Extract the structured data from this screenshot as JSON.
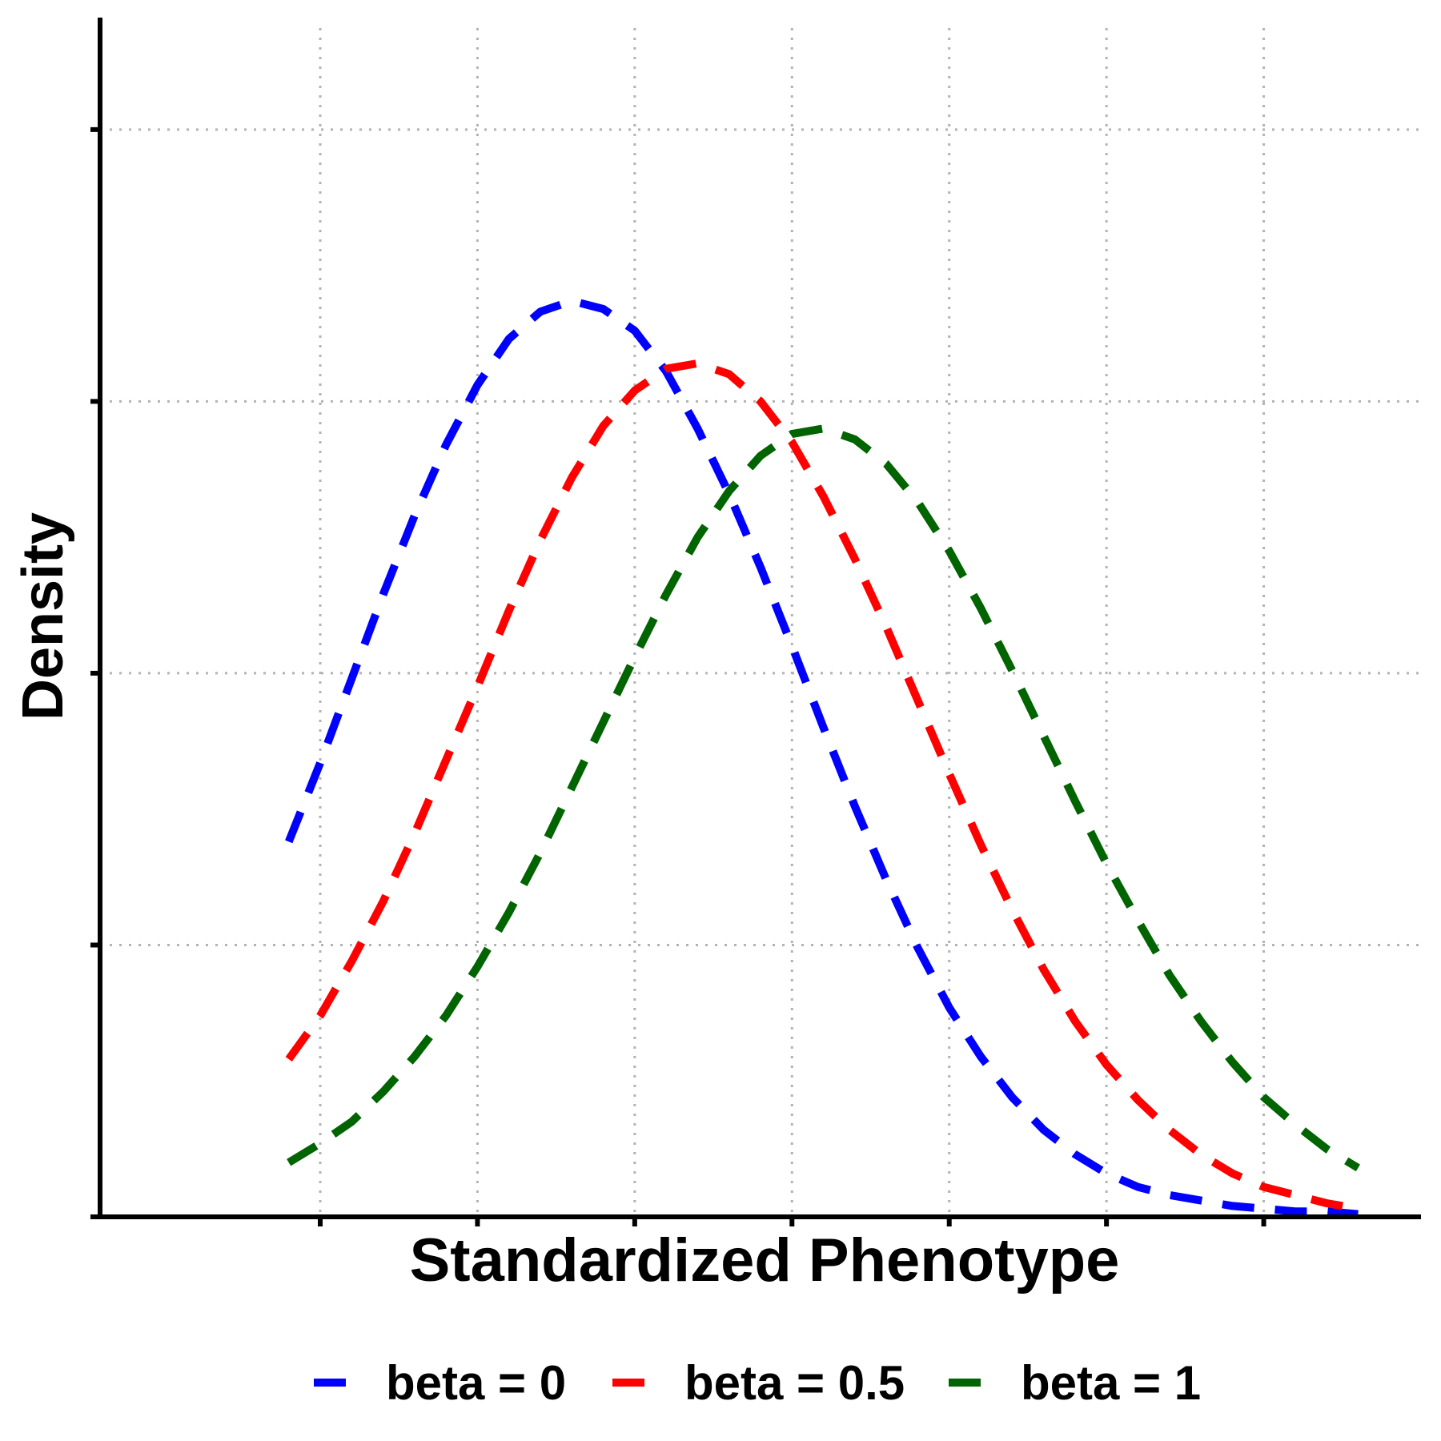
{
  "chart_data": {
    "type": "line",
    "title": "",
    "xlabel": "Standardized Phenotype",
    "ylabel": "Density",
    "x_tick_labels": [],
    "y_tick_labels": [],
    "xlim": [
      -4.4,
      4.0
    ],
    "ylim": [
      0,
      0.43
    ],
    "x_ticks": [
      -3,
      -2,
      -1,
      0,
      1,
      2,
      3
    ],
    "y_ticks": [
      0,
      0.1,
      0.2,
      0.3,
      0.4
    ],
    "x_gridlines": [
      -3,
      -2,
      -1,
      0,
      1,
      2,
      3
    ],
    "y_gridlines": [
      0,
      0.1,
      0.2,
      0.3,
      0.4
    ],
    "grid": "dotted",
    "line_style": "dashed",
    "legend_position": "bottom",
    "series": [
      {
        "name": "beta = 0",
        "color": "#0000ff",
        "x": [
          -3.2,
          -3.0,
          -2.8,
          -2.6,
          -2.4,
          -2.2,
          -2.0,
          -1.8,
          -1.6,
          -1.4,
          -1.2,
          -1.0,
          -0.8,
          -0.6,
          -0.4,
          -0.2,
          0.0,
          0.2,
          0.4,
          0.6,
          0.8,
          1.0,
          1.2,
          1.4,
          1.6,
          1.8,
          2.0,
          2.2,
          2.4,
          2.6,
          2.8,
          3.0,
          3.2,
          3.4,
          3.6
        ],
        "y": [
          0.138,
          0.167,
          0.198,
          0.229,
          0.258,
          0.284,
          0.306,
          0.323,
          0.333,
          0.337,
          0.334,
          0.326,
          0.311,
          0.29,
          0.266,
          0.239,
          0.21,
          0.18,
          0.151,
          0.124,
          0.099,
          0.077,
          0.059,
          0.044,
          0.032,
          0.023,
          0.016,
          0.011,
          0.008,
          0.006,
          0.004,
          0.003,
          0.002,
          0.002,
          0.001
        ]
      },
      {
        "name": "beta = 0.5",
        "color": "#ff0000",
        "x": [
          -3.2,
          -3.0,
          -2.8,
          -2.6,
          -2.4,
          -2.2,
          -2.0,
          -1.8,
          -1.6,
          -1.4,
          -1.2,
          -1.0,
          -0.8,
          -0.6,
          -0.4,
          -0.2,
          0.0,
          0.2,
          0.4,
          0.6,
          0.8,
          1.0,
          1.2,
          1.4,
          1.6,
          1.8,
          2.0,
          2.2,
          2.4,
          2.6,
          2.8,
          3.0,
          3.2,
          3.4,
          3.6
        ],
        "y": [
          0.058,
          0.074,
          0.094,
          0.116,
          0.141,
          0.168,
          0.195,
          0.223,
          0.249,
          0.272,
          0.291,
          0.304,
          0.312,
          0.314,
          0.31,
          0.3,
          0.285,
          0.265,
          0.242,
          0.217,
          0.19,
          0.163,
          0.137,
          0.113,
          0.091,
          0.072,
          0.056,
          0.043,
          0.032,
          0.023,
          0.016,
          0.011,
          0.008,
          0.005,
          0.003
        ]
      },
      {
        "name": "beta = 1",
        "color": "#006400",
        "x": [
          -3.2,
          -3.0,
          -2.8,
          -2.6,
          -2.4,
          -2.2,
          -2.0,
          -1.8,
          -1.6,
          -1.4,
          -1.2,
          -1.0,
          -0.8,
          -0.6,
          -0.4,
          -0.2,
          0.0,
          0.2,
          0.4,
          0.6,
          0.8,
          1.0,
          1.2,
          1.4,
          1.6,
          1.8,
          2.0,
          2.2,
          2.4,
          2.6,
          2.8,
          3.0,
          3.2,
          3.4,
          3.6
        ],
        "y": [
          0.02,
          0.027,
          0.035,
          0.046,
          0.059,
          0.074,
          0.092,
          0.112,
          0.134,
          0.158,
          0.182,
          0.206,
          0.229,
          0.25,
          0.267,
          0.28,
          0.288,
          0.29,
          0.286,
          0.277,
          0.263,
          0.245,
          0.224,
          0.201,
          0.177,
          0.153,
          0.13,
          0.109,
          0.089,
          0.072,
          0.057,
          0.044,
          0.034,
          0.025,
          0.018
        ]
      }
    ]
  }
}
